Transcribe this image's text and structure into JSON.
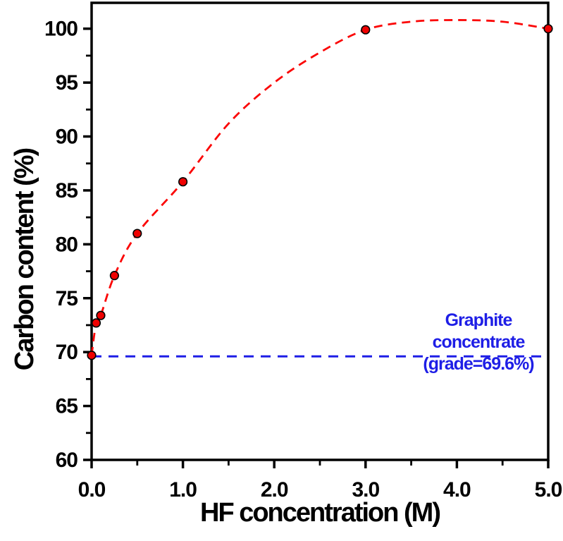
{
  "chart_data": {
    "type": "scatter",
    "title": "",
    "xlabel": "HF concentration (M)",
    "ylabel": "Carbon content (%)",
    "xlim": [
      0,
      5
    ],
    "ylim": [
      60,
      102.4
    ],
    "grid": false,
    "legend": "none",
    "x_major_ticks": [
      {
        "value": 0,
        "label": "0.0"
      },
      {
        "value": 1,
        "label": "1.0"
      },
      {
        "value": 2,
        "label": "2.0"
      },
      {
        "value": 3,
        "label": "3.0"
      },
      {
        "value": 4,
        "label": "4.0"
      },
      {
        "value": 5,
        "label": "5.0"
      }
    ],
    "x_minor_ticks": [
      0.5,
      1.5,
      2.5,
      3.5,
      4.5
    ],
    "y_major_ticks": [
      {
        "value": 60,
        "label": "60"
      },
      {
        "value": 65,
        "label": "65"
      },
      {
        "value": 70,
        "label": "70"
      },
      {
        "value": 75,
        "label": "75"
      },
      {
        "value": 80,
        "label": "80"
      },
      {
        "value": 85,
        "label": "85"
      },
      {
        "value": 90,
        "label": "90"
      },
      {
        "value": 95,
        "label": "95"
      },
      {
        "value": 100,
        "label": "100"
      }
    ],
    "y_minor_ticks": [
      62.5,
      67.5,
      72.5,
      77.5,
      82.5,
      87.5,
      92.5,
      97.5
    ],
    "series": [
      {
        "name": "carbon-content-vs-hf",
        "marker": "circle",
        "marker_color": "#ef0101",
        "marker_edge_color": "#000000",
        "line_color": "#fb0505",
        "line_style": "dashed",
        "points": [
          [
            0,
            69.7
          ],
          [
            0.05,
            72.7
          ],
          [
            0.1,
            73.4
          ],
          [
            0.25,
            77.1
          ],
          [
            0.5,
            81.0
          ],
          [
            1.0,
            85.8
          ],
          [
            3.0,
            99.9
          ],
          [
            5.0,
            100.0
          ]
        ],
        "fit_curve": [
          [
            0,
            69.7
          ],
          [
            0.05,
            72.7
          ],
          [
            0.1,
            73.4
          ],
          [
            0.25,
            77.1
          ],
          [
            0.5,
            81.0
          ],
          [
            1.0,
            85.8
          ],
          [
            1.5,
            91.2
          ],
          [
            2.0,
            95.0
          ],
          [
            2.5,
            97.8
          ],
          [
            3.0,
            99.9
          ],
          [
            3.5,
            100.65
          ],
          [
            4.0,
            100.8
          ],
          [
            4.5,
            100.65
          ],
          [
            5.0,
            100.0
          ]
        ]
      }
    ],
    "reference_line": {
      "value": 69.6,
      "color": "#1e1ee6",
      "style": "dashed",
      "label_lines": [
        "Graphite",
        "concentrate",
        "(grade=69.6%)"
      ]
    }
  }
}
